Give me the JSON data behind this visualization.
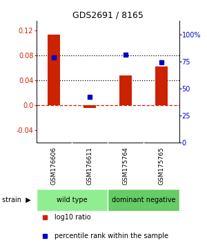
{
  "title": "GDS2691 / 8165",
  "samples": [
    "GSM176606",
    "GSM176611",
    "GSM175764",
    "GSM175765"
  ],
  "log10_ratio": [
    0.113,
    -0.005,
    0.048,
    0.062
  ],
  "percentile_rank": [
    79,
    42,
    81,
    74
  ],
  "groups": [
    {
      "label": "wild type",
      "color": "#90EE90",
      "samples": [
        0,
        1
      ]
    },
    {
      "label": "dominant negative",
      "color": "#66CC66",
      "samples": [
        2,
        3
      ]
    }
  ],
  "bar_color": "#CC2200",
  "dot_color": "#0000CC",
  "ylim_left": [
    -0.06,
    0.135
  ],
  "ylim_right": [
    0,
    112.5
  ],
  "yticks_left": [
    -0.04,
    0.0,
    0.04,
    0.08,
    0.12
  ],
  "yticks_right": [
    0,
    25,
    50,
    75,
    100
  ],
  "ytick_labels_right": [
    "0",
    "25",
    "50",
    "75",
    "100%"
  ],
  "hlines": [
    0.08,
    0.04
  ],
  "zero_line_color": "#CC2200",
  "legend_items": [
    {
      "color": "#CC2200",
      "label": "log10 ratio"
    },
    {
      "color": "#0000CC",
      "label": "percentile rank within the sample"
    }
  ],
  "background_color": "#FFFFFF",
  "sample_bg_color": "#C8C8C8",
  "title_fontsize": 9,
  "tick_fontsize": 7,
  "label_fontsize": 7
}
